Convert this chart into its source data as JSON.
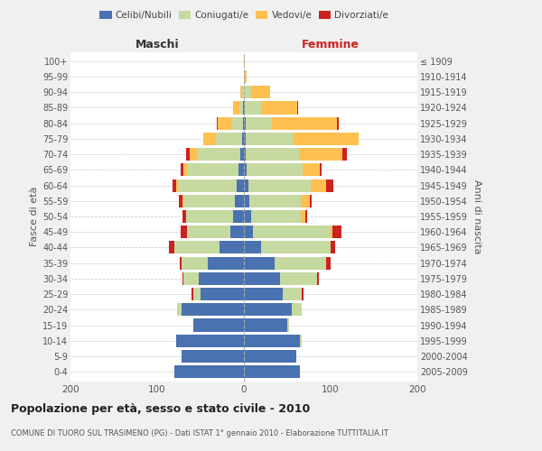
{
  "age_groups": [
    "0-4",
    "5-9",
    "10-14",
    "15-19",
    "20-24",
    "25-29",
    "30-34",
    "35-39",
    "40-44",
    "45-49",
    "50-54",
    "55-59",
    "60-64",
    "65-69",
    "70-74",
    "75-79",
    "80-84",
    "85-89",
    "90-94",
    "95-99",
    "100+"
  ],
  "birth_years": [
    "2005-2009",
    "2000-2004",
    "1995-1999",
    "1990-1994",
    "1985-1989",
    "1980-1984",
    "1975-1979",
    "1970-1974",
    "1965-1969",
    "1960-1964",
    "1955-1959",
    "1950-1954",
    "1945-1949",
    "1940-1944",
    "1935-1939",
    "1930-1934",
    "1925-1929",
    "1920-1924",
    "1915-1919",
    "1910-1914",
    "≤ 1909"
  ],
  "males": {
    "celibi": [
      80,
      72,
      78,
      58,
      72,
      50,
      52,
      42,
      28,
      16,
      12,
      10,
      8,
      6,
      4,
      2,
      1,
      1,
      0,
      0,
      0
    ],
    "coniugati": [
      0,
      0,
      0,
      0,
      5,
      8,
      18,
      30,
      52,
      50,
      55,
      60,
      68,
      60,
      50,
      30,
      14,
      4,
      2,
      0,
      0
    ],
    "vedovi": [
      0,
      0,
      0,
      0,
      0,
      0,
      0,
      0,
      0,
      0,
      0,
      1,
      2,
      4,
      8,
      15,
      15,
      8,
      2,
      0,
      0
    ],
    "divorziati": [
      0,
      0,
      0,
      0,
      0,
      2,
      1,
      2,
      6,
      7,
      4,
      4,
      4,
      3,
      5,
      0,
      1,
      0,
      0,
      0,
      0
    ]
  },
  "females": {
    "nubili": [
      65,
      60,
      65,
      50,
      55,
      45,
      42,
      35,
      20,
      10,
      8,
      6,
      5,
      3,
      2,
      2,
      2,
      1,
      0,
      0,
      0
    ],
    "coniugate": [
      0,
      0,
      2,
      2,
      12,
      22,
      42,
      60,
      80,
      90,
      58,
      60,
      72,
      65,
      62,
      55,
      30,
      20,
      8,
      1,
      0
    ],
    "vedove": [
      0,
      0,
      0,
      0,
      0,
      0,
      0,
      0,
      0,
      2,
      5,
      10,
      18,
      20,
      50,
      75,
      75,
      40,
      22,
      2,
      1
    ],
    "divorziate": [
      0,
      0,
      0,
      0,
      0,
      2,
      2,
      5,
      5,
      10,
      2,
      2,
      8,
      2,
      5,
      0,
      2,
      2,
      0,
      0,
      0
    ]
  },
  "colors": {
    "celibi_nubili": "#4a72b0",
    "coniugati": "#c6d9a0",
    "vedovi": "#ffc050",
    "divorziati": "#cc2222"
  },
  "title": "Popolazione per età, sesso e stato civile - 2010",
  "subtitle": "COMUNE DI TUORO SUL TRASIMENO (PG) - Dati ISTAT 1° gennaio 2010 - Elaborazione TUTTITALIA.IT",
  "ylabel_left": "Fasce di età",
  "ylabel_right": "Anni di nascita",
  "xlabel_left": "Maschi",
  "xlabel_right": "Femmine",
  "xlim": 200,
  "bg_color": "#f0f0f0",
  "plot_bg": "#ffffff",
  "grid_color": "#cccccc"
}
